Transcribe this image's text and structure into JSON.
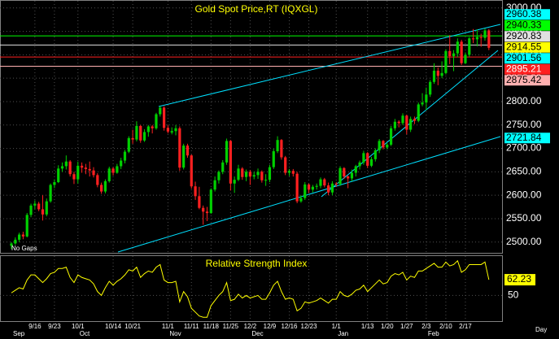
{
  "chart_data": {
    "type": "candlestick",
    "title": "Gold Spot Price,RT (IQXGL)",
    "gaps_label": "No Gaps",
    "interval_label": "Day",
    "up_color": "#00d000",
    "down_color": "#ff2020",
    "grid": true,
    "ylim": [
      2477,
      3017
    ],
    "yticks": [
      {
        "value": 2500,
        "label": "2500.00"
      },
      {
        "value": 2550,
        "label": "2550.00"
      },
      {
        "value": 2600,
        "label": "2600.00"
      },
      {
        "value": 2650,
        "label": "2650.00"
      },
      {
        "value": 2700,
        "label": "2700.00"
      },
      {
        "value": 2750,
        "label": "2750.00"
      },
      {
        "value": 2800,
        "label": "2800.00"
      },
      {
        "value": 2850,
        "label": "2850.00"
      },
      {
        "value": 2900,
        "label": "2900.00"
      },
      {
        "value": 2950,
        "label": "2950.00"
      },
      {
        "value": 3000,
        "label": "3000.00"
      }
    ],
    "levels": [
      {
        "value": 2960.38,
        "color": "#00ffff",
        "text_color": "#000000",
        "line": false
      },
      {
        "value": 2940.33,
        "color": "#00ff00",
        "text_color": "#000000",
        "line": true
      },
      {
        "value": 2920.83,
        "color": "#e0e0e0",
        "text_color": "#000000",
        "line": true
      },
      {
        "value": 2914.55,
        "color": "#ffff00",
        "text_color": "#000000",
        "line": false
      },
      {
        "value": 2901.56,
        "color": "#00ffff",
        "text_color": "#000000",
        "line": false
      },
      {
        "value": 2895.21,
        "color": "#ff2020",
        "text_color": "#ffffff",
        "line": true
      },
      {
        "value": 2875.42,
        "color": "#ffb0b0",
        "text_color": "#000000",
        "line": true
      },
      {
        "value": 2721.84,
        "color": "#00ffff",
        "text_color": "#000000",
        "line": false
      }
    ],
    "categories": [
      null,
      null,
      null,
      null,
      null,
      null,
      "9/16",
      null,
      null,
      null,
      null,
      "9/23",
      null,
      null,
      null,
      null,
      null,
      "10/1",
      null,
      null,
      null,
      null,
      null,
      null,
      null,
      null,
      "10/14",
      null,
      null,
      null,
      null,
      "10/21",
      null,
      null,
      null,
      null,
      null,
      null,
      null,
      null,
      "11/1",
      null,
      null,
      null,
      null,
      null,
      "11/11",
      null,
      null,
      null,
      null,
      "11/18",
      null,
      null,
      null,
      null,
      "11/25",
      null,
      null,
      null,
      null,
      "12/2",
      null,
      null,
      null,
      null,
      "12/9",
      null,
      null,
      null,
      null,
      "12/16",
      null,
      null,
      null,
      null,
      "12/23",
      null,
      null,
      null,
      null,
      null,
      null,
      "1/1",
      null,
      null,
      null,
      null,
      null,
      null,
      null,
      "1/13",
      null,
      null,
      null,
      null,
      "1/20",
      null,
      null,
      null,
      null,
      "1/27",
      null,
      null,
      null,
      null,
      "2/3",
      null,
      null,
      null,
      null,
      "2/10",
      null,
      null,
      null,
      null,
      "2/17",
      null,
      null,
      null,
      null,
      null,
      null
    ],
    "month_labels": [
      "Sep",
      null,
      null,
      null,
      null,
      null,
      null,
      null,
      null,
      null,
      null,
      null,
      null,
      null,
      null,
      null,
      null,
      "Oct",
      null,
      null,
      null,
      null,
      null,
      null,
      null,
      null,
      null,
      null,
      null,
      null,
      null,
      null,
      null,
      null,
      null,
      null,
      null,
      null,
      null,
      null,
      "Nov",
      null,
      null,
      null,
      null,
      null,
      null,
      null,
      null,
      null,
      null,
      null,
      null,
      null,
      null,
      null,
      null,
      null,
      null,
      null,
      null,
      "Dec",
      null,
      null,
      null,
      null,
      null,
      null,
      null,
      null,
      null,
      null,
      null,
      null,
      null,
      null,
      null,
      null,
      null,
      null,
      null,
      null,
      null,
      "Jan",
      null,
      null,
      null,
      null,
      null,
      null,
      null,
      null,
      null,
      null,
      null,
      null,
      null,
      null,
      null,
      null,
      null,
      null,
      null,
      null,
      null,
      null,
      "Feb",
      null,
      null,
      null,
      null,
      null,
      null,
      null,
      null,
      null,
      null,
      null,
      null,
      null,
      null,
      null,
      null
    ],
    "ohlc": [
      [
        2492,
        2500,
        2485,
        2497
      ],
      [
        2497,
        2510,
        2494,
        2505
      ],
      [
        2505,
        2520,
        2500,
        2516
      ],
      [
        2516,
        2522,
        2506,
        2512
      ],
      [
        2512,
        2562,
        2510,
        2558
      ],
      [
        2558,
        2582,
        2553,
        2578
      ],
      [
        2578,
        2589,
        2570,
        2582
      ],
      [
        2582,
        2586,
        2566,
        2570
      ],
      [
        2570,
        2600,
        2546,
        2559
      ],
      [
        2559,
        2593,
        2555,
        2587
      ],
      [
        2587,
        2625,
        2584,
        2622
      ],
      [
        2622,
        2634,
        2615,
        2628
      ],
      [
        2628,
        2664,
        2626,
        2657
      ],
      [
        2657,
        2670,
        2650,
        2662
      ],
      [
        2662,
        2685,
        2655,
        2672
      ],
      [
        2672,
        2675,
        2640,
        2645
      ],
      [
        2645,
        2650,
        2624,
        2634
      ],
      [
        2634,
        2672,
        2625,
        2663
      ],
      [
        2663,
        2670,
        2648,
        2659
      ],
      [
        2659,
        2667,
        2645,
        2656
      ],
      [
        2656,
        2672,
        2640,
        2653
      ],
      [
        2653,
        2660,
        2638,
        2643
      ],
      [
        2643,
        2647,
        2617,
        2622
      ],
      [
        2622,
        2627,
        2603,
        2608
      ],
      [
        2608,
        2634,
        2604,
        2630
      ],
      [
        2630,
        2661,
        2627,
        2657
      ],
      [
        2657,
        2660,
        2642,
        2648
      ],
      [
        2648,
        2667,
        2646,
        2662
      ],
      [
        2662,
        2680,
        2656,
        2674
      ],
      [
        2674,
        2697,
        2668,
        2693
      ],
      [
        2693,
        2726,
        2690,
        2722
      ],
      [
        2722,
        2740,
        2710,
        2719
      ],
      [
        2719,
        2758,
        2715,
        2748
      ],
      [
        2748,
        2750,
        2712,
        2717
      ],
      [
        2717,
        2741,
        2714,
        2735
      ],
      [
        2735,
        2750,
        2725,
        2747
      ],
      [
        2747,
        2750,
        2732,
        2743
      ],
      [
        2743,
        2776,
        2740,
        2773
      ],
      [
        2773,
        2790,
        2768,
        2787
      ],
      [
        2787,
        2790,
        2738,
        2744
      ],
      [
        2744,
        2750,
        2732,
        2736
      ],
      [
        2734,
        2745,
        2730,
        2737
      ],
      [
        2737,
        2750,
        2728,
        2743
      ],
      [
        2743,
        2747,
        2652,
        2659
      ],
      [
        2659,
        2710,
        2655,
        2706
      ],
      [
        2706,
        2710,
        2680,
        2685
      ],
      [
        2685,
        2687,
        2614,
        2619
      ],
      [
        2619,
        2629,
        2590,
        2598
      ],
      [
        2598,
        2618,
        2570,
        2573
      ],
      [
        2573,
        2578,
        2537,
        2565
      ],
      [
        2565,
        2575,
        2545,
        2562
      ],
      [
        2562,
        2615,
        2560,
        2612
      ],
      [
        2612,
        2640,
        2608,
        2632
      ],
      [
        2632,
        2653,
        2625,
        2650
      ],
      [
        2650,
        2675,
        2645,
        2670
      ],
      [
        2670,
        2721,
        2665,
        2716
      ],
      [
        2716,
        2718,
        2610,
        2625
      ],
      [
        2625,
        2640,
        2605,
        2633
      ],
      [
        2633,
        2665,
        2630,
        2657
      ],
      [
        2657,
        2660,
        2633,
        2639
      ],
      [
        2639,
        2655,
        2630,
        2650
      ],
      [
        2650,
        2654,
        2622,
        2640
      ],
      [
        2640,
        2650,
        2634,
        2643
      ],
      [
        2643,
        2657,
        2635,
        2650
      ],
      [
        2650,
        2653,
        2627,
        2632
      ],
      [
        2632,
        2645,
        2620,
        2633
      ],
      [
        2633,
        2665,
        2628,
        2660
      ],
      [
        2660,
        2699,
        2656,
        2694
      ],
      [
        2694,
        2726,
        2690,
        2718
      ],
      [
        2718,
        2720,
        2676,
        2681
      ],
      [
        2681,
        2684,
        2643,
        2648
      ],
      [
        2648,
        2656,
        2641,
        2652
      ],
      [
        2652,
        2656,
        2640,
        2646
      ],
      [
        2646,
        2650,
        2583,
        2587
      ],
      [
        2587,
        2600,
        2584,
        2594
      ],
      [
        2594,
        2628,
        2590,
        2623
      ],
      [
        2623,
        2625,
        2605,
        2612
      ],
      [
        2612,
        2622,
        2606,
        2618
      ],
      [
        2618,
        2625,
        2612,
        2620
      ],
      [
        2620,
        2638,
        2615,
        2634
      ],
      [
        2634,
        2637,
        2617,
        2621
      ],
      [
        2621,
        2627,
        2600,
        2606
      ],
      [
        2606,
        2630,
        2600,
        2625
      ],
      [
        2625,
        2628,
        2618,
        2624
      ],
      [
        2624,
        2662,
        2620,
        2658
      ],
      [
        2658,
        2660,
        2635,
        2640
      ],
      [
        2640,
        2642,
        2615,
        2636
      ],
      [
        2636,
        2655,
        2630,
        2648
      ],
      [
        2648,
        2665,
        2640,
        2662
      ],
      [
        2662,
        2674,
        2655,
        2670
      ],
      [
        2670,
        2695,
        2665,
        2690
      ],
      [
        2690,
        2692,
        2658,
        2663
      ],
      [
        2663,
        2682,
        2660,
        2677
      ],
      [
        2677,
        2700,
        2672,
        2696
      ],
      [
        2696,
        2720,
        2690,
        2716
      ],
      [
        2716,
        2718,
        2698,
        2702
      ],
      [
        2702,
        2712,
        2698,
        2708
      ],
      [
        2708,
        2748,
        2705,
        2743
      ],
      [
        2743,
        2763,
        2738,
        2757
      ],
      [
        2757,
        2760,
        2745,
        2754
      ],
      [
        2754,
        2775,
        2750,
        2770
      ],
      [
        2770,
        2772,
        2730,
        2740
      ],
      [
        2740,
        2768,
        2735,
        2763
      ],
      [
        2763,
        2768,
        2752,
        2759
      ],
      [
        2759,
        2798,
        2756,
        2794
      ],
      [
        2794,
        2818,
        2790,
        2798
      ],
      [
        2798,
        2830,
        2782,
        2815
      ],
      [
        2815,
        2846,
        2810,
        2842
      ],
      [
        2842,
        2882,
        2838,
        2866
      ],
      [
        2866,
        2873,
        2835,
        2855
      ],
      [
        2855,
        2886,
        2850,
        2861
      ],
      [
        2861,
        2912,
        2858,
        2908
      ],
      [
        2908,
        2942,
        2880,
        2897
      ],
      [
        2897,
        2910,
        2865,
        2903
      ],
      [
        2903,
        2935,
        2895,
        2928
      ],
      [
        2928,
        2932,
        2878,
        2882
      ],
      [
        2882,
        2905,
        2880,
        2900
      ],
      [
        2900,
        2938,
        2895,
        2935
      ],
      [
        2935,
        2955,
        2925,
        2933
      ],
      [
        2933,
        2954,
        2918,
        2938
      ],
      [
        2938,
        2945,
        2917,
        2936
      ],
      [
        2936,
        2956,
        2930,
        2952
      ],
      [
        2952,
        2955,
        2910,
        2915
      ]
    ],
    "rsi": {
      "title": "Relative Strength Index",
      "color": "#ffff00",
      "ylim": [
        30,
        80
      ],
      "yticks": [
        50
      ],
      "values": [
        52,
        54,
        56,
        55,
        62,
        66,
        66,
        63,
        60,
        63,
        67,
        68,
        71,
        71,
        72,
        64,
        60,
        66,
        64,
        63,
        62,
        59,
        53,
        50,
        56,
        61,
        58,
        61,
        63,
        66,
        70,
        69,
        72,
        64,
        67,
        69,
        68,
        72,
        74,
        62,
        60,
        60,
        61,
        45,
        53,
        49,
        40,
        37,
        34,
        33,
        33,
        42,
        46,
        50,
        53,
        60,
        46,
        47,
        51,
        48,
        50,
        48,
        49,
        50,
        47,
        47,
        52,
        58,
        61,
        53,
        47,
        48,
        47,
        38,
        40,
        45,
        44,
        45,
        46,
        48,
        46,
        44,
        47,
        47,
        53,
        50,
        49,
        51,
        54,
        55,
        58,
        53,
        56,
        59,
        62,
        59,
        60,
        65,
        67,
        66,
        68,
        62,
        65,
        64,
        69,
        69,
        71,
        73,
        75,
        72,
        72,
        76,
        73,
        74,
        77,
        68,
        70,
        74,
        74,
        74,
        74,
        76,
        62.23
      ]
    }
  }
}
